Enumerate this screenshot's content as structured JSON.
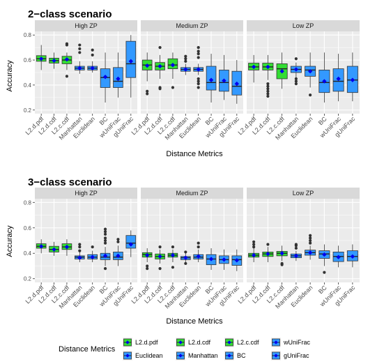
{
  "chart_data": [
    {
      "type": "boxplot",
      "title": "2−class scenario",
      "xlabel": "Distance Metrics",
      "ylabel": "Accuracy",
      "ylim": [
        0.2,
        0.8
      ],
      "yticks": [
        "0.2",
        "0.4",
        "0.6",
        "0.8"
      ],
      "categories": [
        "L2.d.pdf",
        "L2.d.cdf",
        "L2.c.cdf",
        "Manhattan",
        "Euclidean",
        "BC",
        "wUniFrac",
        "gUniFrac"
      ],
      "panels": [
        {
          "name": "High ZP",
          "boxes": [
            {
              "q1": 0.59,
              "median": 0.61,
              "q3": 0.635,
              "lo": 0.52,
              "hi": 0.72,
              "mean": 0.61,
              "outliers": []
            },
            {
              "q1": 0.575,
              "median": 0.595,
              "q3": 0.615,
              "lo": 0.53,
              "hi": 0.66,
              "mean": 0.595,
              "outliers": []
            },
            {
              "q1": 0.57,
              "median": 0.6,
              "q3": 0.63,
              "lo": 0.52,
              "hi": 0.66,
              "mean": 0.605,
              "outliers": [
                0.47,
                0.72,
                0.73
              ]
            },
            {
              "q1": 0.52,
              "median": 0.535,
              "q3": 0.55,
              "lo": 0.49,
              "hi": 0.59,
              "mean": 0.535,
              "outliers": [
                0.66,
                0.69,
                0.72
              ]
            },
            {
              "q1": 0.52,
              "median": 0.535,
              "q3": 0.55,
              "lo": 0.5,
              "hi": 0.59,
              "mean": 0.535,
              "outliers": [
                0.64,
                0.68
              ]
            },
            {
              "q1": 0.38,
              "median": 0.46,
              "q3": 0.53,
              "lo": 0.26,
              "hi": 0.66,
              "mean": 0.465,
              "outliers": []
            },
            {
              "q1": 0.38,
              "median": 0.43,
              "q3": 0.54,
              "lo": 0.3,
              "hi": 0.66,
              "mean": 0.45,
              "outliers": []
            },
            {
              "q1": 0.46,
              "median": 0.57,
              "q3": 0.75,
              "lo": 0.3,
              "hi": 0.8,
              "mean": 0.59,
              "outliers": []
            }
          ]
        },
        {
          "name": "Medium ZP",
          "boxes": [
            {
              "q1": 0.52,
              "median": 0.56,
              "q3": 0.6,
              "lo": 0.43,
              "hi": 0.66,
              "mean": 0.555,
              "outliers": [
                0.33,
                0.35
              ]
            },
            {
              "q1": 0.52,
              "median": 0.55,
              "q3": 0.58,
              "lo": 0.45,
              "hi": 0.64,
              "mean": 0.55,
              "outliers": [
                0.37,
                0.38,
                0.7
              ]
            },
            {
              "q1": 0.53,
              "median": 0.56,
              "q3": 0.61,
              "lo": 0.45,
              "hi": 0.66,
              "mean": 0.56,
              "outliers": [
                0.38
              ]
            },
            {
              "q1": 0.51,
              "median": 0.525,
              "q3": 0.54,
              "lo": 0.48,
              "hi": 0.57,
              "mean": 0.525,
              "outliers": [
                0.59,
                0.61,
                0.63
              ]
            },
            {
              "q1": 0.51,
              "median": 0.525,
              "q3": 0.54,
              "lo": 0.48,
              "hi": 0.57,
              "mean": 0.525,
              "outliers": [
                0.38,
                0.41,
                0.43,
                0.45,
                0.62,
                0.65,
                0.67,
                0.7
              ]
            },
            {
              "q1": 0.36,
              "median": 0.42,
              "q3": 0.55,
              "lo": 0.26,
              "hi": 0.65,
              "mean": 0.44,
              "outliers": []
            },
            {
              "q1": 0.35,
              "median": 0.42,
              "q3": 0.52,
              "lo": 0.28,
              "hi": 0.64,
              "mean": 0.435,
              "outliers": []
            },
            {
              "q1": 0.32,
              "median": 0.39,
              "q3": 0.51,
              "lo": 0.25,
              "hi": 0.6,
              "mean": 0.41,
              "outliers": []
            }
          ]
        },
        {
          "name": "Low ZP",
          "boxes": [
            {
              "q1": 0.52,
              "median": 0.545,
              "q3": 0.575,
              "lo": 0.42,
              "hi": 0.64,
              "mean": 0.545,
              "outliers": []
            },
            {
              "q1": 0.52,
              "median": 0.545,
              "q3": 0.575,
              "lo": 0.44,
              "hi": 0.64,
              "mean": 0.545,
              "outliers": [
                0.31,
                0.33,
                0.35,
                0.37,
                0.39,
                0.41
              ]
            },
            {
              "q1": 0.45,
              "median": 0.53,
              "q3": 0.57,
              "lo": 0.37,
              "hi": 0.66,
              "mean": 0.51,
              "outliers": []
            },
            {
              "q1": 0.5,
              "median": 0.525,
              "q3": 0.55,
              "lo": 0.46,
              "hi": 0.58,
              "mean": 0.525,
              "outliers": [
                0.41,
                0.43,
                0.45,
                0.61
              ]
            },
            {
              "q1": 0.47,
              "median": 0.52,
              "q3": 0.55,
              "lo": 0.38,
              "hi": 0.66,
              "mean": 0.51,
              "outliers": [
                0.32
              ]
            },
            {
              "q1": 0.34,
              "median": 0.42,
              "q3": 0.52,
              "lo": 0.26,
              "hi": 0.66,
              "mean": 0.43,
              "outliers": []
            },
            {
              "q1": 0.35,
              "median": 0.43,
              "q3": 0.53,
              "lo": 0.27,
              "hi": 0.65,
              "mean": 0.45,
              "outliers": []
            },
            {
              "q1": 0.34,
              "median": 0.44,
              "q3": 0.55,
              "lo": 0.27,
              "hi": 0.66,
              "mean": 0.44,
              "outliers": []
            }
          ]
        }
      ]
    },
    {
      "type": "boxplot",
      "title": "3−class scenario",
      "xlabel": "Distance Metrics",
      "ylabel": "Accuracy",
      "ylim": [
        0.2,
        0.8
      ],
      "yticks": [
        "0.2",
        "0.4",
        "0.6",
        "0.8"
      ],
      "categories": [
        "L2.d.pdf",
        "L2.d.cdf",
        "L2.c.cdf",
        "Manhattan",
        "Euclidean",
        "BC",
        "wUniFrac",
        "gUniFrac"
      ],
      "panels": [
        {
          "name": "High ZP",
          "boxes": [
            {
              "q1": 0.44,
              "median": 0.455,
              "q3": 0.475,
              "lo": 0.4,
              "hi": 0.51,
              "mean": 0.455,
              "outliers": []
            },
            {
              "q1": 0.41,
              "median": 0.43,
              "q3": 0.455,
              "lo": 0.38,
              "hi": 0.49,
              "mean": 0.43,
              "outliers": []
            },
            {
              "q1": 0.43,
              "median": 0.45,
              "q3": 0.475,
              "lo": 0.38,
              "hi": 0.51,
              "mean": 0.45,
              "outliers": []
            },
            {
              "q1": 0.355,
              "median": 0.37,
              "q3": 0.38,
              "lo": 0.33,
              "hi": 0.41,
              "mean": 0.365,
              "outliers": [
                0.42,
                0.45,
                0.47
              ]
            },
            {
              "q1": 0.355,
              "median": 0.37,
              "q3": 0.39,
              "lo": 0.33,
              "hi": 0.42,
              "mean": 0.37,
              "outliers": [
                0.45
              ]
            },
            {
              "q1": 0.35,
              "median": 0.37,
              "q3": 0.4,
              "lo": 0.3,
              "hi": 0.45,
              "mean": 0.38,
              "outliers": [
                0.28,
                0.48,
                0.5,
                0.52,
                0.55,
                0.57,
                0.59
              ]
            },
            {
              "q1": 0.35,
              "median": 0.37,
              "q3": 0.41,
              "lo": 0.3,
              "hi": 0.46,
              "mean": 0.38,
              "outliers": [
                0.49,
                0.51
              ]
            },
            {
              "q1": 0.44,
              "median": 0.48,
              "q3": 0.54,
              "lo": 0.37,
              "hi": 0.58,
              "mean": 0.47,
              "outliers": []
            }
          ]
        },
        {
          "name": "Medium ZP",
          "boxes": [
            {
              "q1": 0.37,
              "median": 0.39,
              "q3": 0.405,
              "lo": 0.33,
              "hi": 0.44,
              "mean": 0.385,
              "outliers": [
                0.28,
                0.3
              ]
            },
            {
              "q1": 0.355,
              "median": 0.375,
              "q3": 0.395,
              "lo": 0.32,
              "hi": 0.43,
              "mean": 0.375,
              "outliers": [
                0.28,
                0.45
              ]
            },
            {
              "q1": 0.37,
              "median": 0.385,
              "q3": 0.4,
              "lo": 0.33,
              "hi": 0.43,
              "mean": 0.385,
              "outliers": [
                0.29,
                0.45
              ]
            },
            {
              "q1": 0.35,
              "median": 0.365,
              "q3": 0.375,
              "lo": 0.33,
              "hi": 0.4,
              "mean": 0.365,
              "outliers": [
                0.32,
                0.41
              ]
            },
            {
              "q1": 0.355,
              "median": 0.37,
              "q3": 0.39,
              "lo": 0.33,
              "hi": 0.43,
              "mean": 0.375,
              "outliers": [
                0.45,
                0.48
              ]
            },
            {
              "q1": 0.31,
              "median": 0.355,
              "q3": 0.39,
              "lo": 0.27,
              "hi": 0.44,
              "mean": 0.355,
              "outliers": []
            },
            {
              "q1": 0.32,
              "median": 0.35,
              "q3": 0.38,
              "lo": 0.27,
              "hi": 0.43,
              "mean": 0.35,
              "outliers": []
            },
            {
              "q1": 0.305,
              "median": 0.35,
              "q3": 0.38,
              "lo": 0.26,
              "hi": 0.43,
              "mean": 0.345,
              "outliers": []
            }
          ]
        },
        {
          "name": "Low ZP",
          "boxes": [
            {
              "q1": 0.37,
              "median": 0.385,
              "q3": 0.4,
              "lo": 0.33,
              "hi": 0.44,
              "mean": 0.385,
              "outliers": [
                0.45,
                0.47,
                0.49
              ]
            },
            {
              "q1": 0.375,
              "median": 0.395,
              "q3": 0.41,
              "lo": 0.33,
              "hi": 0.45,
              "mean": 0.395,
              "outliers": [
                0.47
              ]
            },
            {
              "q1": 0.38,
              "median": 0.4,
              "q3": 0.415,
              "lo": 0.34,
              "hi": 0.46,
              "mean": 0.4,
              "outliers": [
                0.31,
                0.32
              ]
            },
            {
              "q1": 0.365,
              "median": 0.38,
              "q3": 0.395,
              "lo": 0.34,
              "hi": 0.42,
              "mean": 0.38,
              "outliers": [
                0.44,
                0.46,
                0.47
              ]
            },
            {
              "q1": 0.385,
              "median": 0.405,
              "q3": 0.425,
              "lo": 0.35,
              "hi": 0.46,
              "mean": 0.405,
              "outliers": [
                0.48,
                0.5,
                0.52,
                0.54
              ]
            },
            {
              "q1": 0.36,
              "median": 0.395,
              "q3": 0.42,
              "lo": 0.3,
              "hi": 0.47,
              "mean": 0.39,
              "outliers": [
                0.25
              ]
            },
            {
              "q1": 0.335,
              "median": 0.375,
              "q3": 0.41,
              "lo": 0.29,
              "hi": 0.46,
              "mean": 0.37,
              "outliers": []
            },
            {
              "q1": 0.34,
              "median": 0.375,
              "q3": 0.42,
              "lo": 0.29,
              "hi": 0.47,
              "mean": 0.375,
              "outliers": []
            }
          ]
        }
      ]
    }
  ],
  "legend": {
    "title": "Distance Metrics",
    "items": [
      "L2.d.pdf",
      "L2.d.cdf",
      "L2.c.cdf",
      "wUniFrac",
      "Euclidean",
      "Manhattan",
      "BC",
      "gUniFrac"
    ]
  },
  "colors": {
    "green": "#33dd33",
    "blue": "#3399ff",
    "mean_marker": "#0000ee",
    "panel_bg": "#ebebeb",
    "strip_bg": "#d9d9d9",
    "grid": "#ffffff",
    "outlier": "#333333"
  }
}
